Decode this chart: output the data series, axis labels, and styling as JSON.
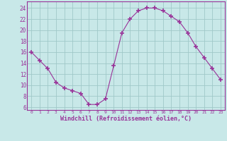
{
  "x": [
    0,
    1,
    2,
    3,
    4,
    5,
    6,
    7,
    8,
    9,
    10,
    11,
    12,
    13,
    14,
    15,
    16,
    17,
    18,
    19,
    20,
    21,
    22,
    23
  ],
  "y": [
    16,
    14.5,
    13,
    10.5,
    9.5,
    9,
    8.5,
    6.5,
    6.5,
    7.5,
    13.5,
    19.5,
    22,
    23.5,
    24,
    24,
    23.5,
    22.5,
    21.5,
    19.5,
    17,
    15,
    13,
    11
  ],
  "line_color": "#993399",
  "marker_color": "#993399",
  "bg_color": "#c8e8e8",
  "grid_color": "#a0c8c8",
  "xlabel": "Windchill (Refroidissement éolien,°C)",
  "ylabel_ticks": [
    6,
    8,
    10,
    12,
    14,
    16,
    18,
    20,
    22,
    24
  ],
  "xtick_labels": [
    "0",
    "1",
    "2",
    "3",
    "4",
    "5",
    "6",
    "7",
    "8",
    "9",
    "10",
    "11",
    "12",
    "13",
    "14",
    "15",
    "16",
    "17",
    "18",
    "19",
    "20",
    "21",
    "22",
    "23"
  ],
  "ylim": [
    5.5,
    25.2
  ],
  "xlim": [
    -0.5,
    23.5
  ],
  "tick_color": "#993399",
  "label_color": "#993399",
  "font_color": "#993399"
}
